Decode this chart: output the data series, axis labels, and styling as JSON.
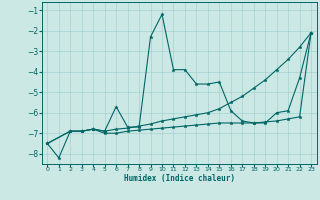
{
  "xlabel": "Humidex (Indice chaleur)",
  "xlim": [
    -0.5,
    23.5
  ],
  "ylim": [
    -8.5,
    -0.6
  ],
  "yticks": [
    -8,
    -7,
    -6,
    -5,
    -4,
    -3,
    -2,
    -1
  ],
  "xticks": [
    0,
    1,
    2,
    3,
    4,
    5,
    6,
    7,
    8,
    9,
    10,
    11,
    12,
    13,
    14,
    15,
    16,
    17,
    18,
    19,
    20,
    21,
    22,
    23
  ],
  "bg_color": "#cce8e4",
  "line_color": "#006666",
  "grid_color": "#99cccc",
  "series": [
    {
      "x": [
        0,
        1,
        2,
        3,
        4,
        5,
        6,
        7,
        8,
        9,
        10,
        11,
        12,
        13,
        14,
        15,
        16,
        17,
        18,
        19,
        20,
        21,
        22,
        23
      ],
      "y": [
        -7.5,
        -8.2,
        -6.9,
        -6.9,
        -6.8,
        -6.9,
        -5.7,
        -6.7,
        -6.7,
        -2.3,
        -1.2,
        -3.9,
        -3.9,
        -4.6,
        -4.6,
        -4.5,
        -5.9,
        -6.4,
        -6.5,
        -6.5,
        -6.0,
        -5.9,
        -4.3,
        -2.1
      ]
    },
    {
      "x": [
        0,
        2,
        3,
        4,
        5,
        6,
        7,
        8,
        9,
        10,
        11,
        12,
        13,
        14,
        15,
        16,
        17,
        18,
        19,
        20,
        21,
        22,
        23
      ],
      "y": [
        -7.5,
        -6.9,
        -6.9,
        -6.8,
        -6.9,
        -6.8,
        -6.75,
        -6.65,
        -6.55,
        -6.4,
        -6.3,
        -6.2,
        -6.1,
        -6.0,
        -5.8,
        -5.5,
        -5.2,
        -4.8,
        -4.4,
        -3.9,
        -3.4,
        -2.8,
        -2.1
      ]
    },
    {
      "x": [
        0,
        2,
        3,
        4,
        5,
        6,
        7,
        8,
        9,
        10,
        11,
        12,
        13,
        14,
        15,
        16,
        17,
        18,
        19,
        20,
        21,
        22,
        23
      ],
      "y": [
        -7.5,
        -6.9,
        -6.9,
        -6.8,
        -7.0,
        -7.0,
        -6.9,
        -6.85,
        -6.8,
        -6.75,
        -6.7,
        -6.65,
        -6.6,
        -6.55,
        -6.5,
        -6.5,
        -6.5,
        -6.5,
        -6.45,
        -6.4,
        -6.3,
        -6.2,
        -2.1
      ]
    }
  ]
}
